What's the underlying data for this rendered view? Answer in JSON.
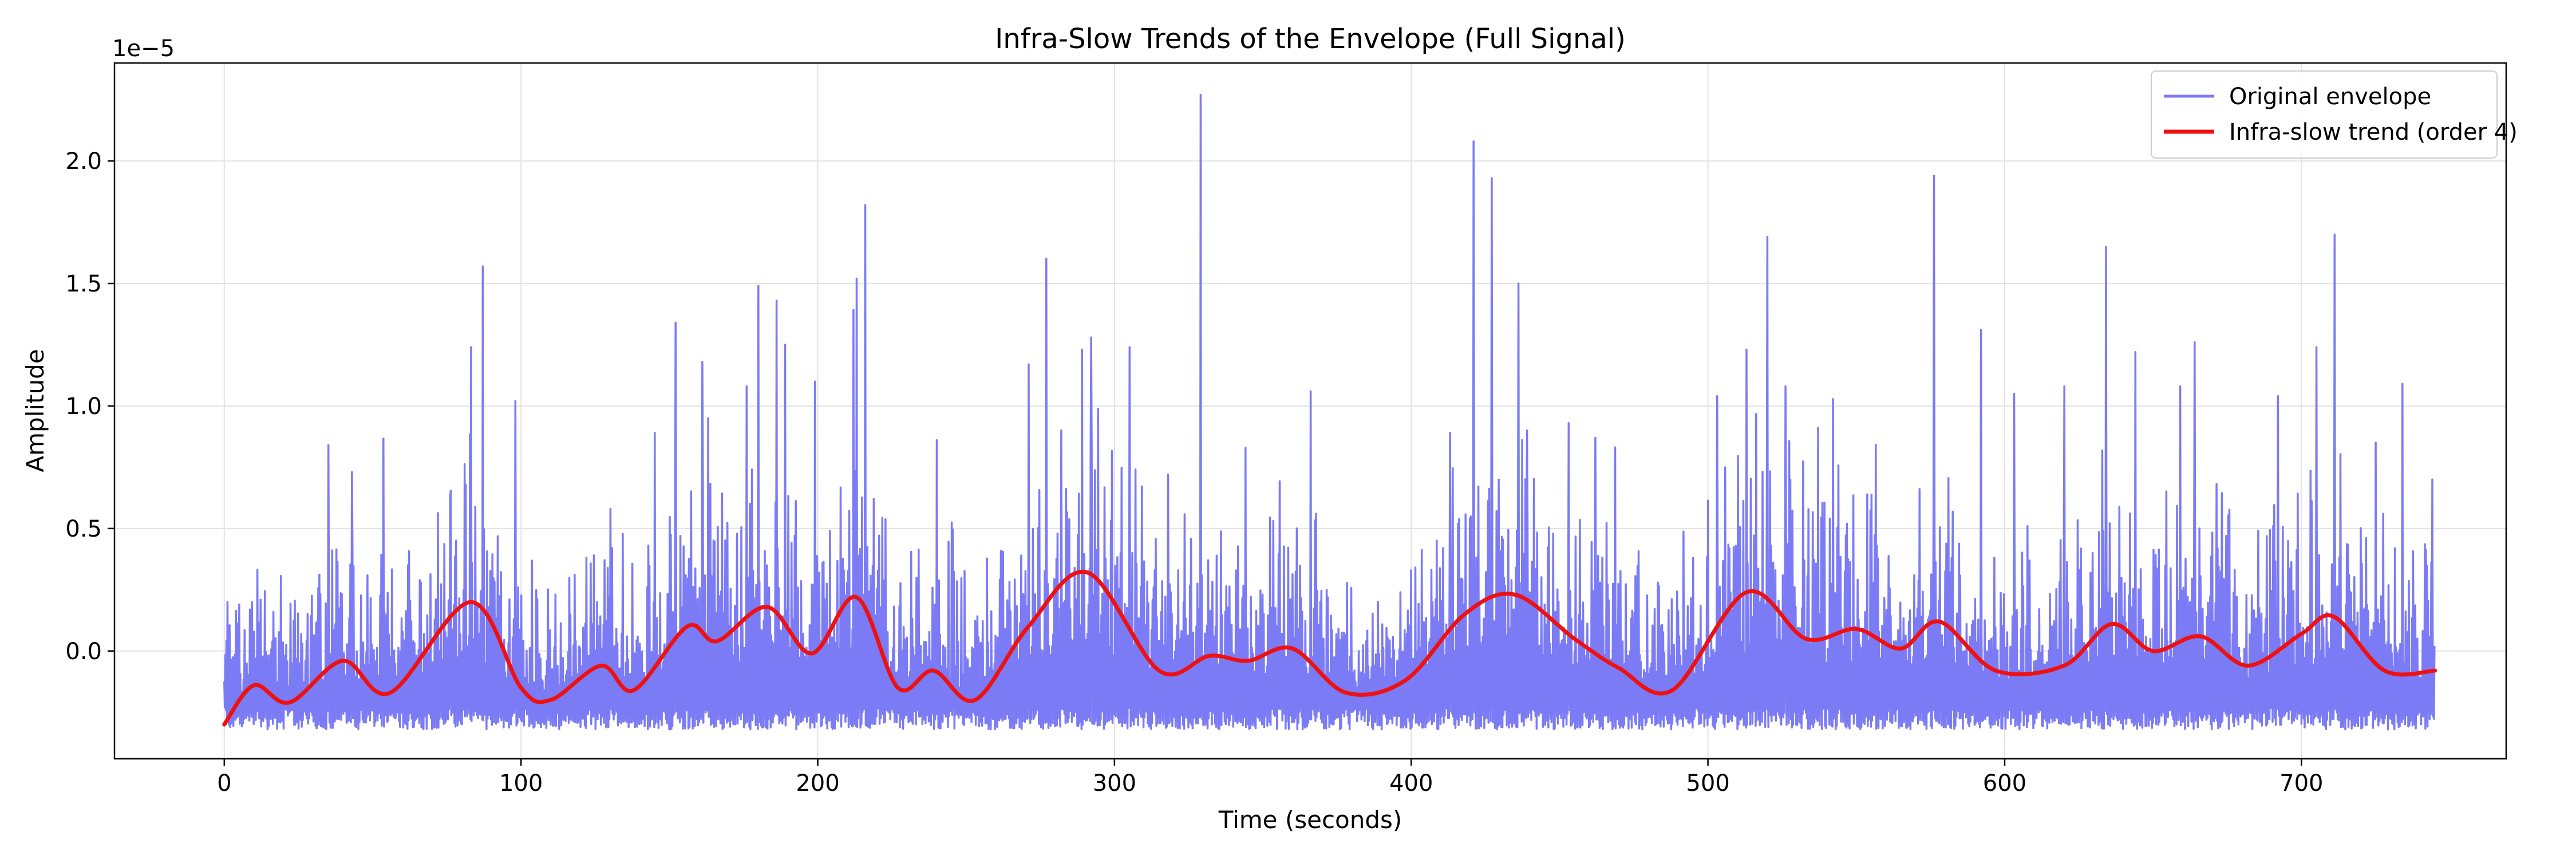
{
  "chart_data": {
    "type": "line",
    "title": "Infra-Slow Trends of the Envelope (Full Signal)",
    "xlabel": "Time (seconds)",
    "ylabel": "Amplitude",
    "y_scale_offset_text": "1e−5",
    "y_scale_factor": 1e-05,
    "xlim": [
      -37,
      769
    ],
    "ylim": [
      -4.4e-06,
      2.4e-05
    ],
    "x_ticks": [
      0,
      100,
      200,
      300,
      400,
      500,
      600,
      700
    ],
    "x_tick_labels": [
      "0",
      "100",
      "200",
      "300",
      "400",
      "500",
      "600",
      "700"
    ],
    "y_ticks": [
      0.0,
      5e-06,
      1e-05,
      1.5e-05,
      2e-05
    ],
    "y_tick_labels": [
      "0.0",
      "0.5",
      "1.0",
      "1.5",
      "2.0"
    ],
    "grid": true,
    "legend_position": "top-right",
    "series": [
      {
        "name": "Original envelope",
        "color": "#7b7bf5",
        "style": "dense-oscillating",
        "x_range": [
          0,
          745
        ],
        "baseline_min": -3.2e-06,
        "peaks": [
          [
            1,
            2e-06
          ],
          [
            5,
            1.9e-06
          ],
          [
            35,
            8.4e-06
          ],
          [
            43,
            7.3e-06
          ],
          [
            76,
            6.3e-06
          ],
          [
            83,
            1.24e-05
          ],
          [
            87,
            1.57e-05
          ],
          [
            98,
            1.02e-05
          ],
          [
            122,
            3.8e-06
          ],
          [
            130,
            5.8e-06
          ],
          [
            145,
            8.9e-06
          ],
          [
            152,
            1.34e-05
          ],
          [
            161,
            1.18e-05
          ],
          [
            163,
            9.5e-06
          ],
          [
            176,
            1.08e-05
          ],
          [
            180,
            1.49e-05
          ],
          [
            186,
            1.43e-05
          ],
          [
            189,
            1.25e-05
          ],
          [
            199,
            1.1e-05
          ],
          [
            213,
            1.52e-05
          ],
          [
            216,
            1.82e-05
          ],
          [
            240,
            8.6e-06
          ],
          [
            271,
            1.17e-05
          ],
          [
            277,
            1.6e-05
          ],
          [
            282,
            9e-06
          ],
          [
            289,
            1.23e-05
          ],
          [
            292,
            1.28e-05
          ],
          [
            305,
            1.24e-05
          ],
          [
            318,
            7.2e-06
          ],
          [
            329,
            2.27e-05
          ],
          [
            344,
            8.3e-06
          ],
          [
            366,
            1.06e-05
          ],
          [
            413,
            8.9e-06
          ],
          [
            421,
            2.08e-05
          ],
          [
            427,
            1.93e-05
          ],
          [
            436,
            1.5e-05
          ],
          [
            439,
            9e-06
          ],
          [
            453,
            9.3e-06
          ],
          [
            462,
            8.7e-06
          ],
          [
            503,
            1.04e-05
          ],
          [
            513,
            1.23e-05
          ],
          [
            520,
            1.69e-05
          ],
          [
            526,
            1.08e-05
          ],
          [
            537,
            9.1e-06
          ],
          [
            576,
            1.94e-05
          ],
          [
            592,
            1.31e-05
          ],
          [
            603,
            1.05e-05
          ],
          [
            620,
            1.08e-05
          ],
          [
            634,
            1.65e-05
          ],
          [
            644,
            1.22e-05
          ],
          [
            659,
            1.08e-05
          ],
          [
            664,
            1.26e-05
          ],
          [
            692,
            1.04e-05
          ],
          [
            705,
            1.24e-05
          ],
          [
            711,
            1.7e-05
          ],
          [
            725,
            8.5e-06
          ],
          [
            734,
            1.09e-05
          ],
          [
            744,
            7e-06
          ]
        ]
      },
      {
        "name": "Infra-slow trend (order 4)",
        "color": "#ee1111",
        "points": [
          [
            0,
            -3e-06
          ],
          [
            10,
            -1.4e-06
          ],
          [
            22,
            -2.1e-06
          ],
          [
            40,
            -4e-07
          ],
          [
            56,
            -1.7e-06
          ],
          [
            83,
            2e-06
          ],
          [
            100,
            -1.5e-06
          ],
          [
            110,
            -2e-06
          ],
          [
            127,
            -6e-07
          ],
          [
            138,
            -1.6e-06
          ],
          [
            156,
            1e-06
          ],
          [
            166,
            4e-07
          ],
          [
            183,
            1.8e-06
          ],
          [
            198,
            -1e-07
          ],
          [
            213,
            2.2e-06
          ],
          [
            227,
            -1.5e-06
          ],
          [
            239,
            -8e-07
          ],
          [
            253,
            -2e-06
          ],
          [
            271,
            1e-06
          ],
          [
            291,
            3.2e-06
          ],
          [
            315,
            -8e-07
          ],
          [
            332,
            -2e-07
          ],
          [
            345,
            -4e-07
          ],
          [
            360,
            1e-07
          ],
          [
            378,
            -1.7e-06
          ],
          [
            398,
            -1.2e-06
          ],
          [
            418,
            1.5e-06
          ],
          [
            435,
            2.3e-06
          ],
          [
            455,
            5e-07
          ],
          [
            470,
            -7e-07
          ],
          [
            488,
            -1.6e-06
          ],
          [
            513,
            2.4e-06
          ],
          [
            533,
            5e-07
          ],
          [
            550,
            9e-07
          ],
          [
            565,
            1e-07
          ],
          [
            578,
            1.2e-06
          ],
          [
            597,
            -8e-07
          ],
          [
            620,
            -6e-07
          ],
          [
            636,
            1.1e-06
          ],
          [
            650,
            0.0
          ],
          [
            666,
            6e-07
          ],
          [
            682,
            -6e-07
          ],
          [
            700,
            7e-07
          ],
          [
            711,
            1.4e-06
          ],
          [
            728,
            -8e-07
          ],
          [
            745,
            -8e-07
          ]
        ]
      }
    ]
  }
}
